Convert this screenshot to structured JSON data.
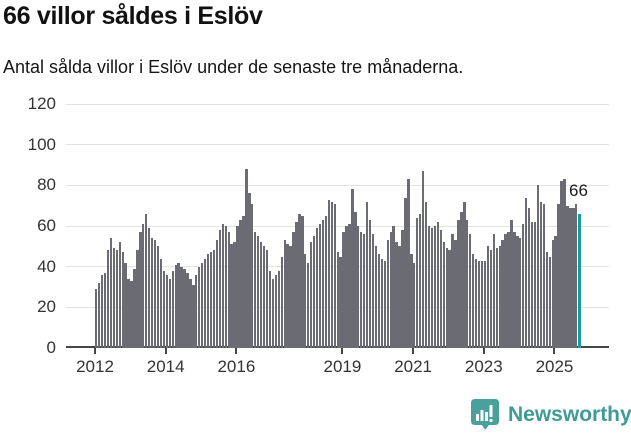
{
  "header": {
    "title": "66 villor såldes i Eslöv",
    "subtitle": "Antal sålda villor i Eslöv under de senaste tre månaderna."
  },
  "chart_data": {
    "type": "bar",
    "title": "66 villor såldes i Eslöv",
    "subtitle": "Antal sålda villor i Eslöv under de senaste tre månaderna.",
    "xlabel": "",
    "ylabel": "",
    "ylim": [
      0,
      120
    ],
    "y_ticks": [
      0,
      20,
      40,
      60,
      80,
      100,
      120
    ],
    "x_tick_years": [
      2012,
      2014,
      2016,
      2019,
      2021,
      2023,
      2025
    ],
    "grid": true,
    "x_start": "2012-01",
    "x_interval": "month",
    "values": [
      29,
      32,
      36,
      37,
      48,
      54,
      49,
      48,
      52,
      47,
      42,
      34,
      33,
      39,
      48,
      57,
      61,
      66,
      59,
      54,
      53,
      50,
      44,
      38,
      36,
      34,
      38,
      41,
      42,
      40,
      39,
      37,
      34,
      31,
      36,
      40,
      42,
      44,
      46,
      47,
      48,
      53,
      58,
      61,
      60,
      57,
      51,
      52,
      60,
      63,
      65,
      88,
      76,
      71,
      57,
      55,
      52,
      50,
      48,
      38,
      34,
      36,
      38,
      45,
      53,
      51,
      50,
      57,
      62,
      66,
      65,
      46,
      42,
      52,
      55,
      59,
      61,
      63,
      65,
      73,
      72,
      71,
      47,
      45,
      57,
      60,
      61,
      78,
      67,
      60,
      57,
      56,
      72,
      63,
      56,
      50,
      46,
      44,
      43,
      53,
      57,
      60,
      52,
      50,
      58,
      74,
      83,
      46,
      42,
      64,
      66,
      87,
      72,
      60,
      59,
      60,
      62,
      58,
      52,
      49,
      48,
      56,
      53,
      63,
      67,
      72,
      63,
      56,
      46,
      44,
      43,
      43,
      43,
      50,
      48,
      56,
      49,
      50,
      53,
      56,
      57,
      63,
      57,
      55,
      54,
      61,
      74,
      69,
      62,
      62,
      80,
      72,
      71,
      47,
      45,
      53,
      55,
      71,
      82,
      83,
      70,
      69,
      69,
      71,
      66
    ],
    "highlight_last": {
      "value": 66,
      "label": "66"
    },
    "legend": null
  },
  "colors": {
    "bar": "#6b6b74",
    "highlight": "#1a9aa1",
    "gridline": "#e3e3e3",
    "axis": "#474747",
    "tick_label": "#333333",
    "annotation": "#1a1a1a",
    "brand": "#3f9b98"
  },
  "footer": {
    "brand_name": "Newsworthy",
    "logo_icon": "newsworthy-bubble-chart-icon"
  }
}
